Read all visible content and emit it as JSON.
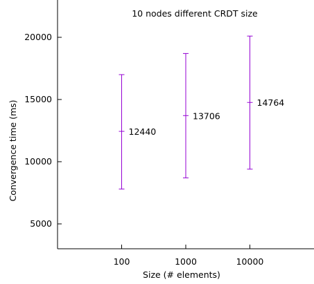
{
  "chart_data": {
    "type": "errorbar",
    "title": "10 nodes different CRDT size",
    "xlabel": "Size (# elements)",
    "ylabel": "Convergence time (ms)",
    "x_scale": "log",
    "xlim": [
      10,
      100000
    ],
    "ylim": [
      3000,
      23000
    ],
    "x_ticks": [
      100,
      1000,
      10000
    ],
    "y_ticks": [
      5000,
      10000,
      15000,
      20000
    ],
    "grid": false,
    "series_color": "#9400d3",
    "points": [
      {
        "x": 100,
        "y": 12440,
        "low": 7800,
        "high": 17000,
        "label": "12440"
      },
      {
        "x": 1000,
        "y": 13706,
        "low": 8700,
        "high": 18700,
        "label": "13706"
      },
      {
        "x": 10000,
        "y": 14764,
        "low": 9400,
        "high": 20100,
        "label": "14764"
      }
    ]
  }
}
